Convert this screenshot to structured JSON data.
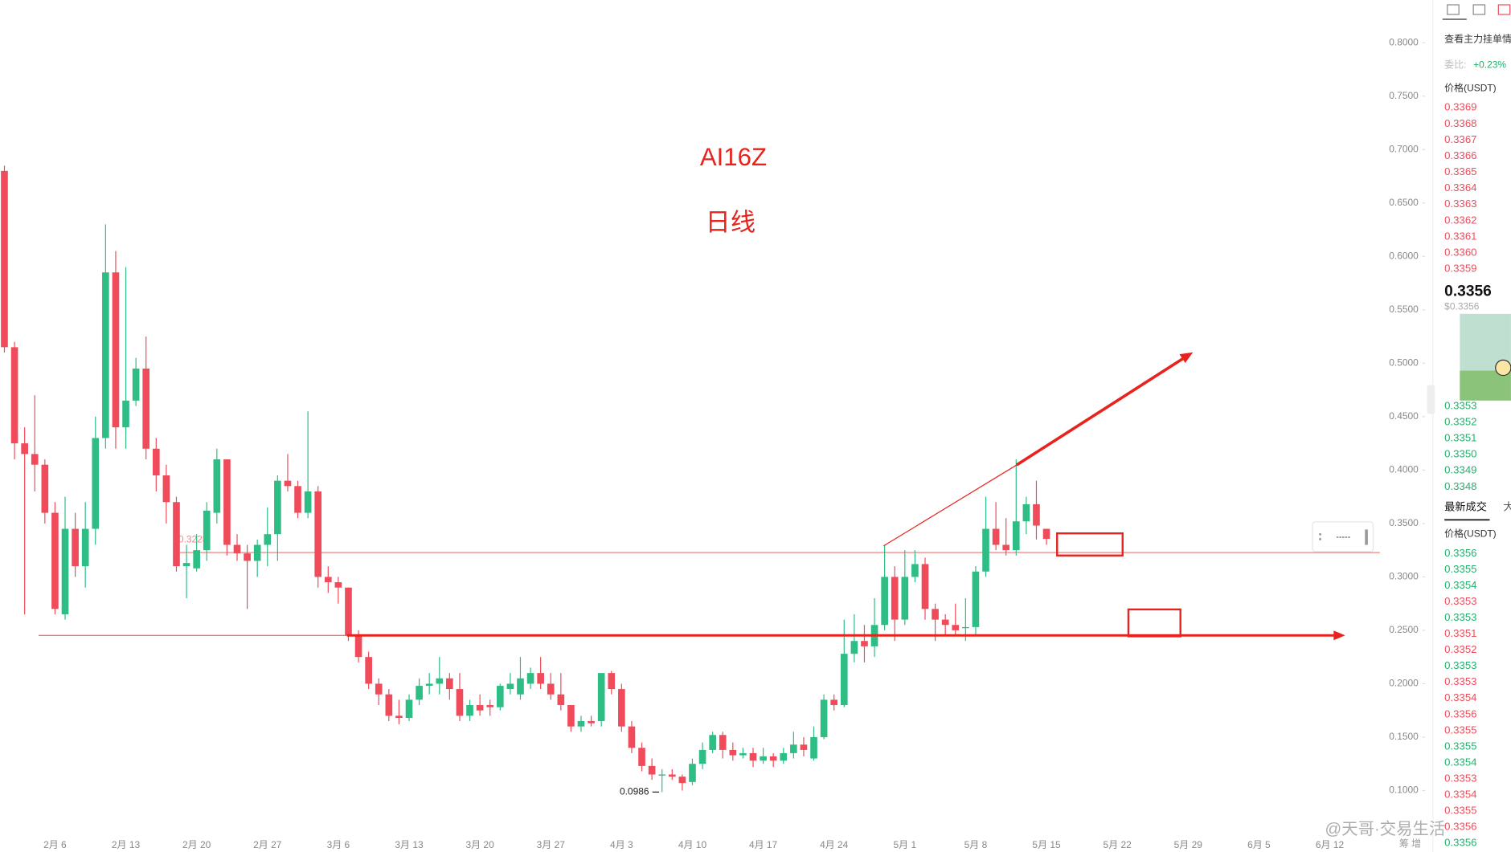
{
  "chart_data": {
    "type": "candlestick",
    "title": "AI16Z",
    "subtitle": "日线",
    "categories": [
      null,
      null,
      null,
      null,
      null,
      "2月 6",
      null,
      null,
      null,
      null,
      null,
      null,
      "2月 13",
      null,
      null,
      null,
      null,
      null,
      null,
      "2月 20",
      null,
      null,
      null,
      null,
      null,
      null,
      "2月 27",
      null,
      null,
      null,
      null,
      null,
      null,
      "3月 6",
      null,
      null,
      null,
      null,
      null,
      null,
      "3月 13",
      null,
      null,
      null,
      null,
      null,
      null,
      "3月 20",
      null,
      null,
      null,
      null,
      null,
      null,
      "3月 27",
      null,
      null,
      null,
      null,
      null,
      null,
      "4月 3",
      null,
      null,
      null,
      null,
      null,
      null,
      "4月 10",
      null,
      null,
      null,
      null,
      null,
      null,
      "4月 17",
      null,
      null,
      null,
      null,
      null,
      null,
      "4月 24",
      null,
      null,
      null,
      null,
      null,
      null,
      "5月 1",
      null,
      null,
      null,
      null,
      null,
      null,
      "5月 8",
      null,
      null,
      null,
      null,
      null,
      null,
      "5月 15",
      null,
      null,
      null,
      null,
      null,
      null,
      "5月 22",
      null,
      null,
      null,
      null,
      null,
      null,
      "5月 29",
      null,
      null,
      null,
      null,
      null,
      null,
      "6月 5",
      null,
      null,
      null,
      null,
      null,
      null,
      "6月 12"
    ],
    "open": [
      0.68,
      0.515,
      0.425,
      0.415,
      0.405,
      0.36,
      0.265,
      0.345,
      0.31,
      0.345,
      0.43,
      0.585,
      0.44,
      0.465,
      0.495,
      0.42,
      0.395,
      0.37,
      0.31,
      0.308,
      0.325,
      0.36,
      0.41,
      0.33,
      0.322,
      0.315,
      0.33,
      0.34,
      0.39,
      0.385,
      0.36,
      0.38,
      0.3,
      0.295,
      0.29,
      0.245,
      0.225,
      0.2,
      0.19,
      0.17,
      0.168,
      0.185,
      0.198,
      0.2,
      0.205,
      0.195,
      0.17,
      0.18,
      0.18,
      0.178,
      0.195,
      0.19,
      0.2,
      0.21,
      0.2,
      0.19,
      0.18,
      0.16,
      0.165,
      0.165,
      0.21,
      0.195,
      0.16,
      0.14,
      0.123,
      0.114,
      0.115,
      0.113,
      0.108,
      0.125,
      0.138,
      0.152,
      0.138,
      0.133,
      0.135,
      0.128,
      0.132,
      0.128,
      0.135,
      0.143,
      0.13,
      0.15,
      0.185,
      0.18,
      0.228,
      0.24,
      0.235,
      0.255,
      0.3,
      0.26,
      0.3,
      0.312,
      0.27,
      0.26,
      0.255,
      0.252,
      0.253,
      0.305,
      0.345,
      0.33,
      0.325,
      0.352,
      0.368,
      0.345,
      null,
      null,
      null,
      null,
      null,
      null,
      null,
      null,
      null,
      null,
      null,
      null,
      null,
      null,
      null,
      null,
      null,
      null,
      null,
      null,
      null,
      null,
      null,
      null,
      null,
      null,
      null,
      null
    ],
    "high": [
      0.685,
      0.52,
      0.44,
      0.47,
      0.41,
      0.37,
      0.375,
      0.36,
      0.37,
      0.45,
      0.63,
      0.605,
      0.59,
      0.505,
      0.525,
      0.43,
      0.405,
      0.375,
      0.33,
      0.34,
      0.37,
      0.42,
      0.41,
      0.34,
      0.33,
      0.335,
      0.365,
      0.395,
      0.415,
      0.39,
      0.455,
      0.385,
      0.31,
      0.3,
      0.29,
      0.25,
      0.23,
      0.205,
      0.195,
      0.185,
      0.19,
      0.205,
      0.21,
      0.225,
      0.21,
      0.21,
      0.185,
      0.19,
      0.185,
      0.2,
      0.21,
      0.225,
      0.215,
      0.225,
      0.21,
      0.21,
      0.18,
      0.17,
      0.17,
      0.21,
      0.212,
      0.2,
      0.165,
      0.145,
      0.13,
      0.12,
      0.12,
      0.115,
      0.13,
      0.145,
      0.155,
      0.155,
      0.145,
      0.14,
      0.14,
      0.14,
      0.135,
      0.14,
      0.155,
      0.15,
      0.16,
      0.19,
      0.19,
      0.26,
      0.265,
      0.255,
      0.28,
      0.33,
      0.31,
      0.325,
      0.325,
      0.318,
      0.275,
      0.265,
      0.275,
      0.28,
      0.31,
      0.375,
      0.37,
      0.355,
      0.41,
      0.375,
      0.39,
      0.345,
      null,
      null,
      null,
      null,
      null,
      null,
      null,
      null,
      null,
      null,
      null,
      null,
      null,
      null,
      null,
      null,
      null,
      null,
      null,
      null,
      null,
      null,
      null,
      null,
      null,
      null,
      null,
      null
    ],
    "low": [
      0.51,
      0.41,
      0.265,
      0.38,
      0.35,
      0.265,
      0.26,
      0.3,
      0.29,
      0.33,
      0.42,
      0.42,
      0.42,
      0.46,
      0.41,
      0.38,
      0.35,
      0.305,
      0.28,
      0.305,
      0.315,
      0.35,
      0.32,
      0.315,
      0.27,
      0.3,
      0.31,
      0.315,
      0.38,
      0.355,
      0.355,
      0.29,
      0.285,
      0.275,
      0.24,
      0.22,
      0.195,
      0.18,
      0.165,
      0.162,
      0.165,
      0.18,
      0.19,
      0.19,
      0.185,
      0.165,
      0.165,
      0.17,
      0.17,
      0.175,
      0.19,
      0.185,
      0.195,
      0.195,
      0.185,
      0.175,
      0.155,
      0.155,
      0.16,
      0.16,
      0.19,
      0.155,
      0.135,
      0.118,
      0.11,
      0.0986,
      0.11,
      0.1,
      0.105,
      0.12,
      0.135,
      0.13,
      0.128,
      0.13,
      0.122,
      0.125,
      0.122,
      0.125,
      0.13,
      0.132,
      0.128,
      0.148,
      0.175,
      0.178,
      0.22,
      0.22,
      0.225,
      0.25,
      0.24,
      0.255,
      0.295,
      0.26,
      0.24,
      0.245,
      0.245,
      0.24,
      0.245,
      0.3,
      0.325,
      0.32,
      0.32,
      0.34,
      0.335,
      0.33,
      null,
      null,
      null,
      null,
      null,
      null,
      null,
      null,
      null,
      null,
      null,
      null,
      null,
      null,
      null,
      null,
      null,
      null,
      null,
      null,
      null,
      null,
      null,
      null,
      null,
      null,
      null,
      null
    ],
    "close": [
      0.515,
      0.425,
      0.415,
      0.405,
      0.36,
      0.27,
      0.345,
      0.31,
      0.345,
      0.43,
      0.585,
      0.44,
      0.465,
      0.495,
      0.42,
      0.395,
      0.37,
      0.31,
      0.313,
      0.325,
      0.362,
      0.41,
      0.33,
      0.322,
      0.315,
      0.33,
      0.34,
      0.39,
      0.385,
      0.36,
      0.38,
      0.3,
      0.295,
      0.29,
      0.245,
      0.225,
      0.2,
      0.19,
      0.17,
      0.168,
      0.185,
      0.198,
      0.2,
      0.205,
      0.195,
      0.17,
      0.18,
      0.175,
      0.178,
      0.198,
      0.2,
      0.205,
      0.21,
      0.2,
      0.19,
      0.18,
      0.16,
      0.165,
      0.163,
      0.21,
      0.195,
      0.16,
      0.14,
      0.123,
      0.115,
      0.115,
      0.113,
      0.107,
      0.125,
      0.138,
      0.152,
      0.138,
      0.133,
      0.135,
      0.128,
      0.132,
      0.128,
      0.135,
      0.143,
      0.138,
      0.15,
      0.185,
      0.18,
      0.228,
      0.24,
      0.235,
      0.255,
      0.3,
      0.26,
      0.3,
      0.312,
      0.27,
      0.26,
      0.255,
      0.25,
      0.253,
      0.305,
      0.345,
      0.33,
      0.325,
      0.352,
      0.368,
      0.348,
      0.3356,
      null,
      null,
      null,
      null,
      null,
      null,
      null,
      null,
      null,
      null,
      null,
      null,
      null,
      null,
      null,
      null,
      null,
      null,
      null,
      null,
      null,
      null,
      null,
      null,
      null,
      null,
      null,
      null
    ],
    "up_color": "#2ebd85",
    "down_color": "#ef4b5a",
    "ylim": [
      0.065,
      0.84
    ],
    "yticks": [
      {
        "value": 0.8,
        "label": "0.8000"
      },
      {
        "value": 0.75,
        "label": "0.7500"
      },
      {
        "value": 0.7,
        "label": "0.7000"
      },
      {
        "value": 0.65,
        "label": "0.6500"
      },
      {
        "value": 0.6,
        "label": "0.6000"
      },
      {
        "value": 0.55,
        "label": "0.5500"
      },
      {
        "value": 0.5,
        "label": "0.5000"
      },
      {
        "value": 0.45,
        "label": "0.4500"
      },
      {
        "value": 0.4,
        "label": "0.4000"
      },
      {
        "value": 0.35,
        "label": "0.3500"
      },
      {
        "value": 0.3,
        "label": "0.3000"
      },
      {
        "value": 0.25,
        "label": "0.2500"
      },
      {
        "value": 0.2,
        "label": "0.2000"
      },
      {
        "value": 0.15,
        "label": "0.1500"
      },
      {
        "value": 0.1,
        "label": "0.1000"
      }
    ],
    "grid": false,
    "price_line": 0.3228,
    "low_label": 0.0986
  },
  "order_book": {
    "title": "查看主力挂单情",
    "ratio_label": "委比:",
    "ratio": "+0.23%",
    "price_header": "价格(USDT)",
    "asks": [
      "0.3369",
      "0.3368",
      "0.3367",
      "0.3366",
      "0.3365",
      "0.3364",
      "0.3363",
      "0.3362",
      "0.3361",
      "0.3360",
      "0.3359"
    ],
    "last_price": "0.3356",
    "last_price_usd": "$0.3356",
    "bids": [
      "0.3353",
      "0.3352",
      "0.3351",
      "0.3350",
      "0.3349",
      "0.3348"
    ],
    "trades_tab": "最新成交",
    "trades_tab2": "大",
    "trades_header": "价格(USDT)",
    "trades": [
      {
        "price": "0.3356",
        "color": "#20b26c"
      },
      {
        "price": "0.3355",
        "color": "#20b26c"
      },
      {
        "price": "0.3354",
        "color": "#20b26c"
      },
      {
        "price": "0.3353",
        "color": "#ef4b5a"
      },
      {
        "price": "0.3353",
        "color": "#20b26c"
      },
      {
        "price": "0.3351",
        "color": "#ef4b5a"
      },
      {
        "price": "0.3352",
        "color": "#ef4b5a"
      },
      {
        "price": "0.3353",
        "color": "#20b26c"
      },
      {
        "price": "0.3353",
        "color": "#ef4b5a"
      },
      {
        "price": "0.3354",
        "color": "#ef4b5a"
      },
      {
        "price": "0.3356",
        "color": "#ef4b5a"
      },
      {
        "price": "0.3355",
        "color": "#ef4b5a"
      },
      {
        "price": "0.3355",
        "color": "#20b26c"
      },
      {
        "price": "0.3354",
        "color": "#20b26c"
      },
      {
        "price": "0.3353",
        "color": "#ef4b5a"
      },
      {
        "price": "0.3354",
        "color": "#ef4b5a"
      },
      {
        "price": "0.3355",
        "color": "#ef4b5a"
      },
      {
        "price": "0.3356",
        "color": "#ef4b5a"
      },
      {
        "price": "0.3356",
        "color": "#20b26c"
      }
    ]
  },
  "watermark": "@天哥·交易生活",
  "footer_note": "筹 增"
}
